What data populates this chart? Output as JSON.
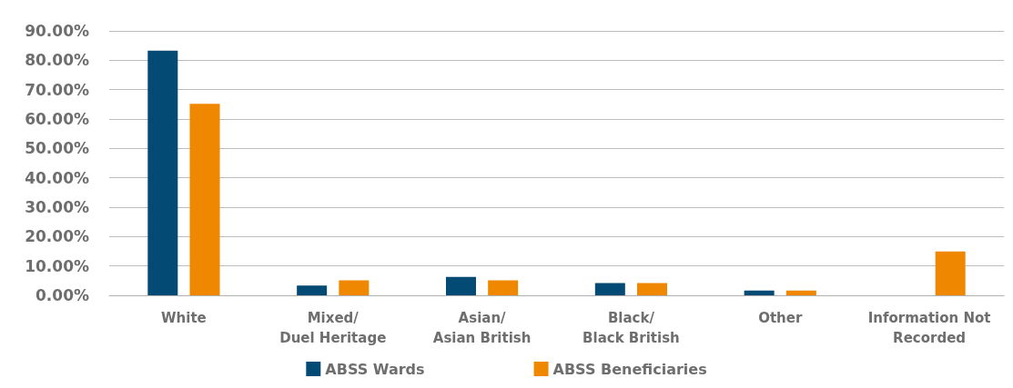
{
  "chart_data": {
    "type": "bar",
    "categories": [
      "White",
      "Mixed/\nDuel Heritage",
      "Asian/\nAsian British",
      "Black/\nBlack British",
      "Other",
      "Information Not\nRecorded"
    ],
    "series": [
      {
        "name": "ABSS Wards",
        "color": "#034a74",
        "values": [
          83.3,
          3.3,
          6.3,
          4.2,
          1.6,
          0
        ]
      },
      {
        "name": "ABSS Beneficiaries",
        "color": "#f08700",
        "values": [
          65.2,
          5.1,
          5.1,
          4.2,
          1.6,
          14.9
        ]
      }
    ],
    "ylim": [
      0,
      90
    ],
    "yticks": [
      {
        "value": 0,
        "label": "0.00%"
      },
      {
        "value": 10,
        "label": "10.00%"
      },
      {
        "value": 20,
        "label": "20.00%"
      },
      {
        "value": 30,
        "label": "30.00%"
      },
      {
        "value": 40,
        "label": "40.00%"
      },
      {
        "value": 50,
        "label": "50.00%"
      },
      {
        "value": 60,
        "label": "60.00%"
      },
      {
        "value": 70,
        "label": "70.00%"
      },
      {
        "value": 80,
        "label": "80.00%"
      },
      {
        "value": 90,
        "label": "90.00%"
      }
    ],
    "grid": "y",
    "legend": "bottom"
  }
}
